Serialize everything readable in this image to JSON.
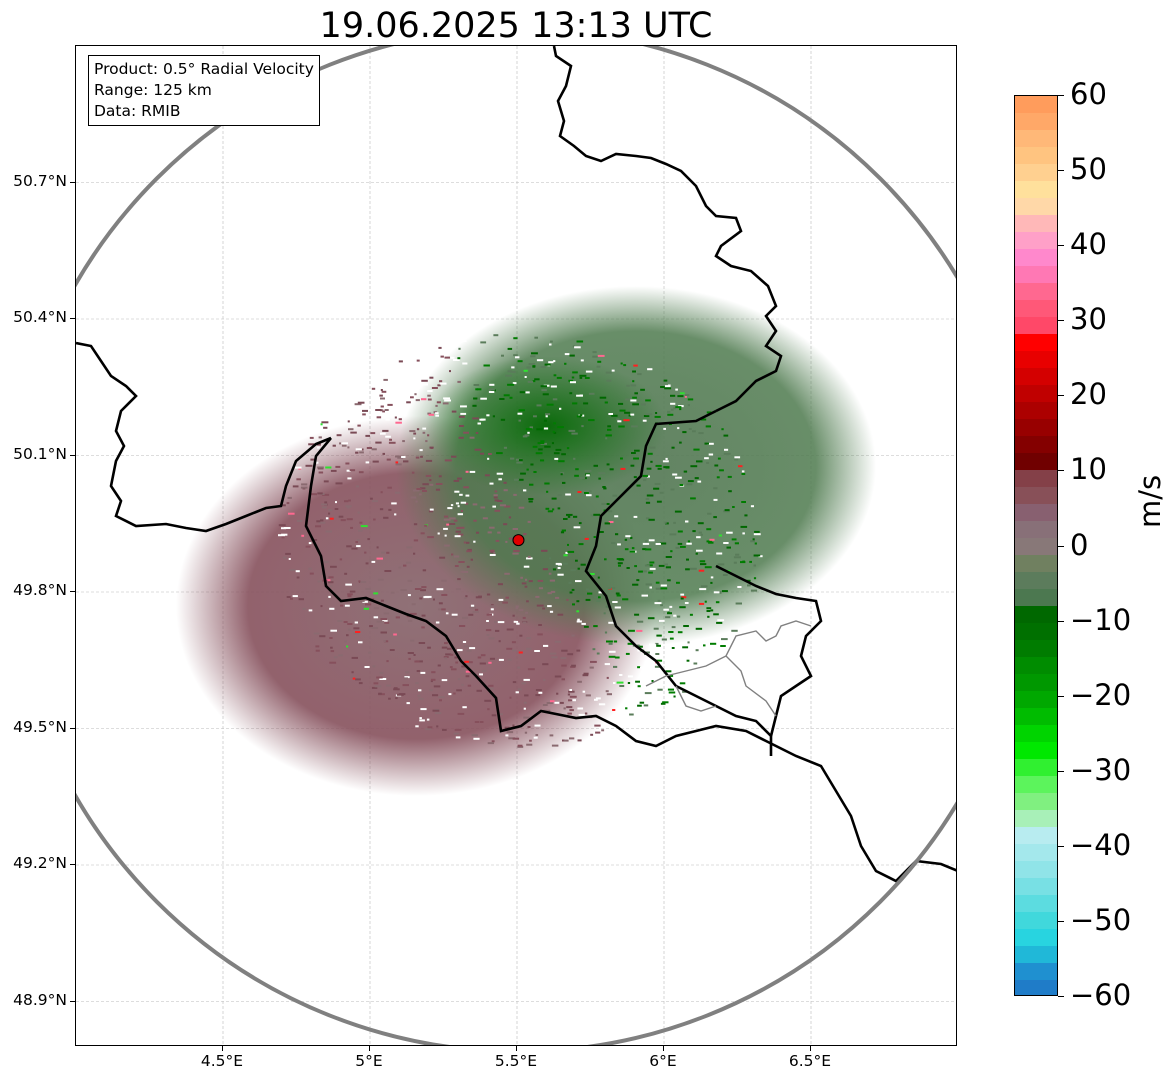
{
  "title": "19.06.2025 13:13 UTC",
  "info_box": {
    "product": "Product: 0.5° Radial Velocity",
    "range": "Range: 125 km",
    "data": "Data: RMIB"
  },
  "map": {
    "lon_range": [
      4.0,
      7.0
    ],
    "lat_range": [
      48.8,
      51.0
    ],
    "radar_site": {
      "lon": 5.505,
      "lat": 49.914
    },
    "range_km": 125,
    "x_ticks": [
      "4.5°E",
      "5°E",
      "5.5°E",
      "6°E",
      "6.5°E"
    ],
    "y_ticks": [
      "50.7°N",
      "50.4°N",
      "50.1°N",
      "49.8°N",
      "49.5°N",
      "49.2°N",
      "48.9°N"
    ],
    "gridlines": true,
    "colors": {
      "range_ring": "#808080",
      "country_border": "#000000",
      "region_border": "#808080",
      "radar_marker": "#e00000"
    }
  },
  "colorbar": {
    "label": "m/s",
    "ticks": [
      "60",
      "50",
      "40",
      "30",
      "20",
      "10",
      "0",
      "−10",
      "−20",
      "−30",
      "−40",
      "−50",
      "−60"
    ],
    "range": [
      -60,
      60
    ],
    "colors_top_to_bottom": [
      "#ff9c5c",
      "#ffa868",
      "#ffb878",
      "#ffc480",
      "#ffd090",
      "#ffe09c",
      "#ffd8a8",
      "#ffb8b8",
      "#ffa0c8",
      "#ff88cc",
      "#ff78b4",
      "#ff6890",
      "#ff5878",
      "#ff4868",
      "#ff0000",
      "#e80000",
      "#d40000",
      "#c00000",
      "#ac0000",
      "#980000",
      "#840000",
      "#700000",
      "#844048",
      "#885058",
      "#886070",
      "#887078",
      "#887878",
      "#708060",
      "#5c7c5c",
      "#4c7850",
      "#006800",
      "#007000",
      "#007c00",
      "#008c00",
      "#009800",
      "#00a800",
      "#00bc00",
      "#00d400",
      "#00e800",
      "#30f030",
      "#5cf45c",
      "#80f080",
      "#a8f0b8",
      "#b8ecf0",
      "#a4e8ec",
      "#90e4e8",
      "#78e0e4",
      "#5cdce0",
      "#40d8dc",
      "#28d4e0",
      "#20b8d8",
      "#1f90d0",
      "#1f7cc8"
    ]
  }
}
